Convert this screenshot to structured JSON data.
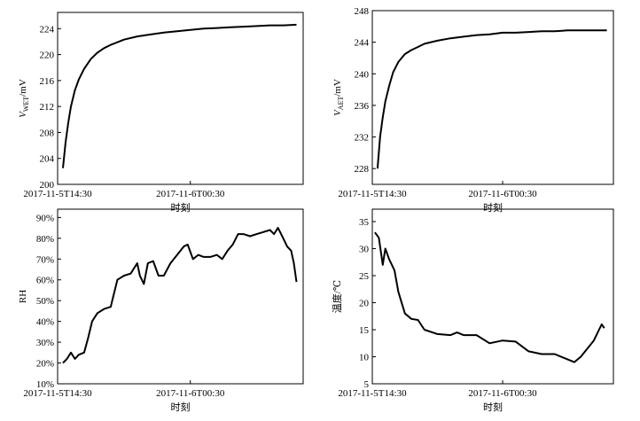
{
  "chart_data": [
    {
      "type": "line",
      "xlabel": "时刻",
      "ylabel": {
        "symbol": "V",
        "subscript": "WET",
        "unit": "/mV"
      },
      "color": "#000000",
      "x": [
        0.4,
        0.6,
        0.8,
        1.0,
        1.3,
        1.6,
        2.0,
        2.5,
        3.0,
        3.5,
        4.0,
        5.0,
        6.0,
        7.0,
        8.0,
        9.0,
        10.0,
        11.0,
        12.0,
        13.0,
        14.0,
        15.0,
        16.0,
        17.0,
        18.0
      ],
      "values": [
        202.5,
        206.5,
        209.5,
        212,
        214.5,
        216.2,
        217.8,
        219.3,
        220.3,
        221,
        221.5,
        222.3,
        222.8,
        223.1,
        223.4,
        223.6,
        223.8,
        224,
        224.1,
        224.2,
        224.3,
        224.4,
        224.5,
        224.5,
        224.6
      ],
      "xlim": [
        0,
        18.5
      ],
      "xticks": [
        {
          "value": 0,
          "label": "2017-11-5T14:30"
        },
        {
          "value": 10,
          "label": "2017-11-6T00:30"
        }
      ],
      "ylim": [
        200,
        226.5
      ],
      "yticks": [
        200,
        204,
        208,
        212,
        216,
        220,
        224
      ]
    },
    {
      "type": "line",
      "xlabel": "时刻",
      "ylabel": {
        "symbol": "V",
        "subscript": "AET",
        "unit": "/mV"
      },
      "color": "#000000",
      "x": [
        0.4,
        0.6,
        0.8,
        1.0,
        1.3,
        1.6,
        2.0,
        2.5,
        3.0,
        3.5,
        4.0,
        5.0,
        6.0,
        7.0,
        8.0,
        9.0,
        10.0,
        11.0,
        12.0,
        13.0,
        14.0,
        15.0,
        16.0,
        17.0,
        18.0
      ],
      "values": [
        228,
        232,
        234.5,
        236.5,
        238.5,
        240.2,
        241.5,
        242.5,
        243,
        243.4,
        243.8,
        244.2,
        244.5,
        244.7,
        244.9,
        245,
        245.2,
        245.2,
        245.3,
        245.4,
        245.4,
        245.5,
        245.5,
        245.5,
        245.5
      ],
      "xlim": [
        0,
        18.5
      ],
      "xticks": [
        {
          "value": 0,
          "label": "2017-11-5T14:30"
        },
        {
          "value": 10,
          "label": "2017-11-6T00:30"
        }
      ],
      "ylim": [
        226,
        248
      ],
      "yticks": [
        228,
        232,
        236,
        240,
        244,
        248
      ]
    },
    {
      "type": "line",
      "xlabel": "时刻",
      "ylabel": "RH",
      "color": "#000000",
      "x": [
        0.4,
        0.7,
        1.0,
        1.3,
        1.6,
        2.0,
        2.3,
        2.6,
        3.0,
        3.5,
        4.0,
        4.5,
        5.0,
        5.5,
        6.0,
        6.2,
        6.5,
        6.8,
        7.2,
        7.6,
        8.0,
        8.5,
        9.0,
        9.5,
        9.8,
        10.2,
        10.6,
        11.0,
        11.5,
        12.0,
        12.4,
        12.8,
        13.2,
        13.6,
        14.0,
        14.5,
        15.0,
        15.5,
        16.0,
        16.3,
        16.6,
        17.0,
        17.3,
        17.6,
        17.8,
        18.0
      ],
      "values": [
        20,
        22,
        25,
        22,
        24,
        25,
        32,
        40,
        44,
        46,
        47,
        60,
        62,
        63,
        68,
        62,
        58,
        68,
        69,
        62,
        62,
        68,
        72,
        76,
        77,
        70,
        72,
        71,
        71,
        72,
        70,
        74,
        77,
        82,
        82,
        81,
        82,
        83,
        84,
        82,
        85,
        80,
        76,
        74,
        68,
        59
      ],
      "xlim": [
        0,
        18.5
      ],
      "xticks": [
        {
          "value": 0,
          "label": "2017-11-5T14:30"
        },
        {
          "value": 10,
          "label": "2017-11-6T00:30"
        }
      ],
      "ylim": [
        10,
        94
      ],
      "yticks": [
        {
          "value": 10,
          "label": "10%"
        },
        {
          "value": 20,
          "label": "20%"
        },
        {
          "value": 30,
          "label": "30%"
        },
        {
          "value": 40,
          "label": "40%"
        },
        {
          "value": 50,
          "label": "50%"
        },
        {
          "value": 60,
          "label": "60%"
        },
        {
          "value": 70,
          "label": "70%"
        },
        {
          "value": 80,
          "label": "80%"
        },
        {
          "value": 90,
          "label": "90%"
        }
      ]
    },
    {
      "type": "line",
      "xlabel": "时刻",
      "ylabel": "温度/℃",
      "color": "#000000",
      "x": [
        0.2,
        0.5,
        0.8,
        1.0,
        1.3,
        1.7,
        2.0,
        2.5,
        3.0,
        3.5,
        4.0,
        5.0,
        6.0,
        6.5,
        7.0,
        8.0,
        9.0,
        10.0,
        11.0,
        12.0,
        13.0,
        14.0,
        15.0,
        15.5,
        16.0,
        17.0,
        17.4,
        17.6,
        17.8
      ],
      "values": [
        33,
        32,
        27,
        30,
        28,
        26,
        22,
        18,
        17,
        16.8,
        15,
        14.2,
        14,
        14.5,
        14,
        14,
        12.5,
        13,
        12.8,
        11,
        10.5,
        10.5,
        9.5,
        9,
        10,
        13,
        15,
        16,
        15.3
      ],
      "xlim": [
        0,
        18.5
      ],
      "xticks": [
        {
          "value": 0,
          "label": "2017-11-5T14:30"
        },
        {
          "value": 10,
          "label": "2017-11-6T00:30"
        }
      ],
      "ylim": [
        5,
        37.3
      ],
      "yticks": [
        5,
        10,
        15,
        20,
        25,
        30,
        35
      ]
    }
  ]
}
